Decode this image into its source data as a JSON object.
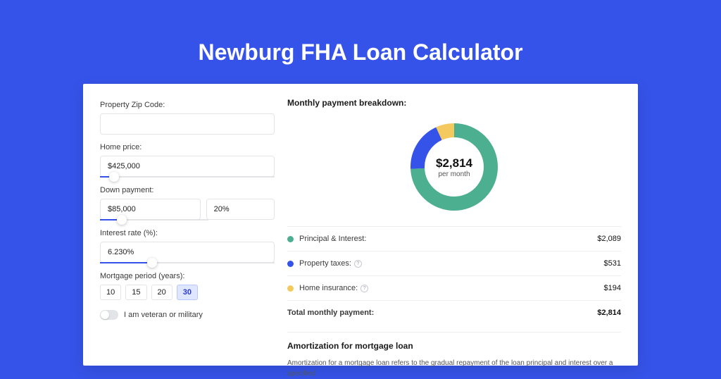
{
  "colors": {
    "page_bg": "#3553e8",
    "card_bg": "#ffffff",
    "border": "#e2e4e8",
    "text": "#1a1a1a",
    "muted": "#555555"
  },
  "title": "Newburg FHA Loan Calculator",
  "form": {
    "zip": {
      "label": "Property Zip Code:",
      "value": ""
    },
    "home_price": {
      "label": "Home price:",
      "value": "$425,000",
      "slider_pct": 8
    },
    "down_payment": {
      "label": "Down payment:",
      "value": "$85,000",
      "pct_value": "20%",
      "slider_pct": 20
    },
    "interest_rate": {
      "label": "Interest rate (%):",
      "value": "6.230%",
      "slider_pct": 30
    },
    "period": {
      "label": "Mortgage period (years):",
      "options": [
        "10",
        "15",
        "20",
        "30"
      ],
      "selected": "30"
    },
    "veteran": {
      "label": "I am veteran or military",
      "checked": false
    }
  },
  "breakdown": {
    "title": "Monthly payment breakdown:",
    "donut": {
      "value": "$2,814",
      "sub": "per month",
      "slices": [
        {
          "key": "pi",
          "color": "#4caf8f",
          "pct": 74.2
        },
        {
          "key": "tax",
          "color": "#3553e8",
          "pct": 18.9
        },
        {
          "key": "ins",
          "color": "#f4c95d",
          "pct": 6.9
        }
      ],
      "thickness": 20,
      "radius": 52
    },
    "legend": [
      {
        "swatch": "#4caf8f",
        "label": "Principal & Interest:",
        "info": false,
        "value": "$2,089"
      },
      {
        "swatch": "#3553e8",
        "label": "Property taxes:",
        "info": true,
        "value": "$531"
      },
      {
        "swatch": "#f4c95d",
        "label": "Home insurance:",
        "info": true,
        "value": "$194"
      }
    ],
    "total": {
      "label": "Total monthly payment:",
      "value": "$2,814"
    }
  },
  "amortization": {
    "title": "Amortization for mortgage loan",
    "text": "Amortization for a mortgage loan refers to the gradual repayment of the loan principal and interest over a specified"
  }
}
